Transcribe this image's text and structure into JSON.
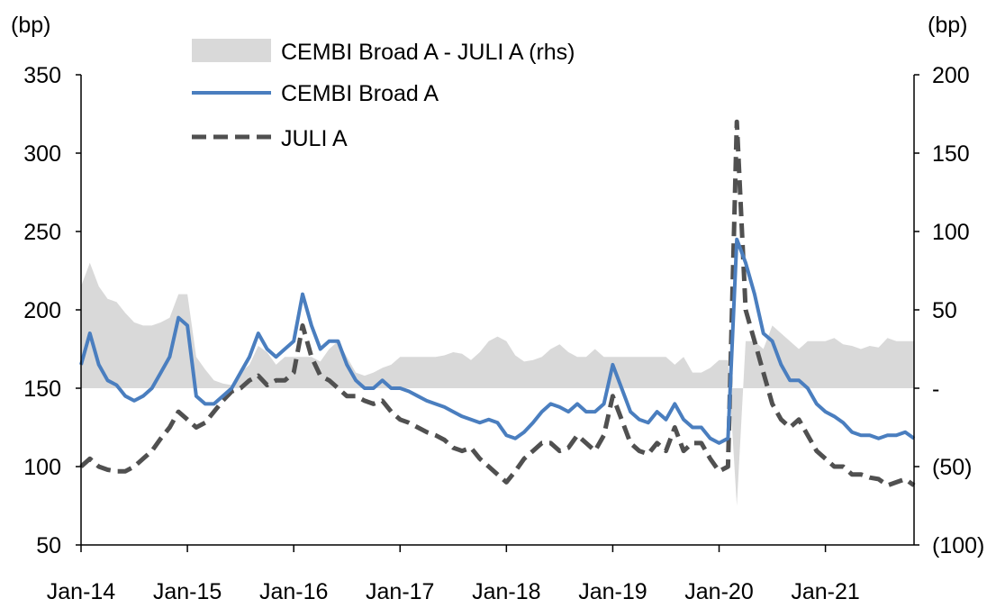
{
  "chart_data": {
    "type": "line",
    "title": "",
    "ylabel_left": "(bp)",
    "ylabel_right": "(bp)",
    "ylim_left": [
      50,
      350
    ],
    "ylim_right": [
      -100,
      200
    ],
    "yticks_left": [
      "350",
      "300",
      "250",
      "200",
      "150",
      "100",
      "50"
    ],
    "yticks_right": [
      "200",
      "150",
      "100",
      "50",
      "-",
      "(50)",
      "(100)"
    ],
    "xticks": [
      "Jan-14",
      "Jan-15",
      "Jan-16",
      "Jan-17",
      "Jan-18",
      "Jan-19",
      "Jan-20",
      "Jan-21"
    ],
    "x_start": "Jan-14",
    "x_end": "Nov-21",
    "x_frequency": "monthly",
    "legend_position": "top-left",
    "colors": {
      "cembi": "#4a7ebf",
      "juli": "#505050",
      "spread": "#d9d9d9"
    },
    "series": [
      {
        "name": "CEMBI Broad A - JULI A (rhs)",
        "type": "area",
        "axis": "right",
        "derived": "CEMBI Broad A minus JULI A"
      },
      {
        "name": "CEMBI Broad A",
        "type": "line",
        "axis": "left",
        "values": [
          165,
          185,
          165,
          155,
          152,
          145,
          142,
          145,
          150,
          160,
          170,
          195,
          190,
          145,
          140,
          140,
          145,
          150,
          160,
          170,
          185,
          175,
          170,
          175,
          180,
          210,
          190,
          175,
          180,
          180,
          165,
          155,
          150,
          150,
          155,
          150,
          150,
          148,
          145,
          142,
          140,
          138,
          135,
          132,
          130,
          128,
          130,
          128,
          120,
          118,
          122,
          128,
          135,
          140,
          138,
          135,
          140,
          135,
          135,
          140,
          165,
          150,
          135,
          130,
          128,
          135,
          130,
          140,
          130,
          125,
          125,
          118,
          115,
          118,
          245,
          230,
          210,
          185,
          180,
          165,
          155,
          155,
          150,
          140,
          135,
          132,
          128,
          122,
          120,
          120,
          118,
          120,
          120,
          122,
          118
        ]
      },
      {
        "name": "JULI A",
        "type": "line",
        "axis": "left",
        "style": "dashed",
        "values": [
          100,
          105,
          100,
          98,
          97,
          97,
          100,
          105,
          110,
          118,
          125,
          135,
          130,
          125,
          128,
          135,
          142,
          148,
          150,
          155,
          158,
          152,
          155,
          155,
          160,
          190,
          170,
          158,
          155,
          150,
          145,
          145,
          142,
          140,
          142,
          135,
          130,
          128,
          125,
          122,
          120,
          117,
          112,
          110,
          112,
          105,
          100,
          95,
          90,
          97,
          105,
          110,
          115,
          115,
          110,
          112,
          120,
          115,
          110,
          120,
          145,
          130,
          115,
          110,
          108,
          115,
          110,
          125,
          110,
          115,
          115,
          105,
          97,
          100,
          320,
          200,
          180,
          160,
          140,
          130,
          125,
          130,
          120,
          110,
          105,
          100,
          100,
          95,
          95,
          93,
          92,
          88,
          90,
          92,
          88
        ]
      }
    ]
  }
}
